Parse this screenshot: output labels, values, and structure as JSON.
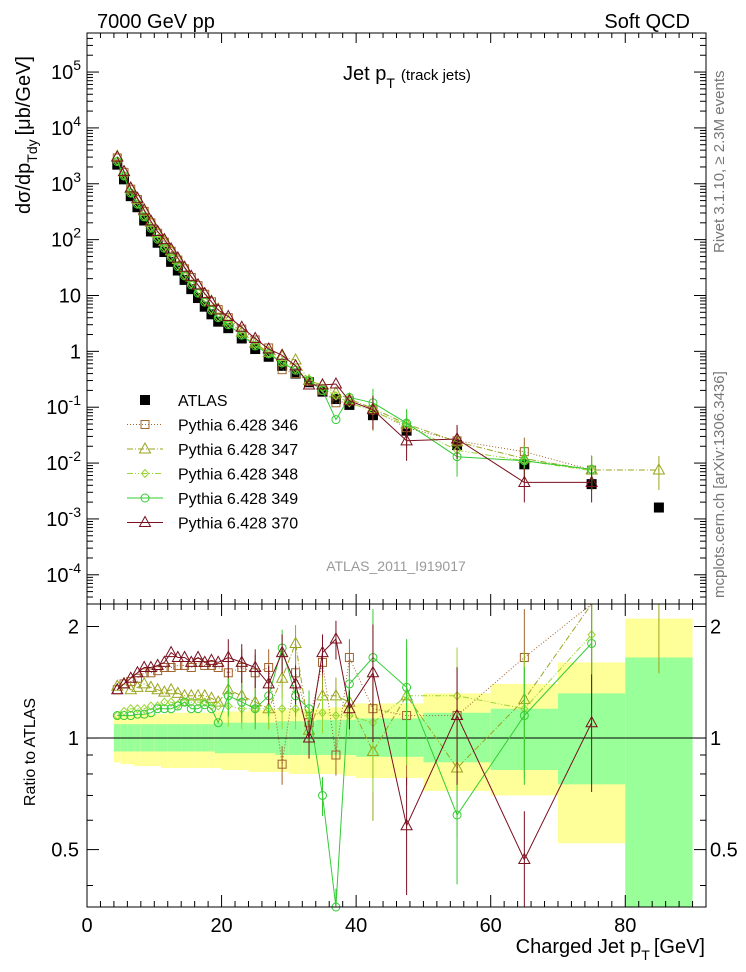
{
  "header": {
    "left": "7000 GeV pp",
    "right": "Soft QCD",
    "side_top": "Rivet 3.1.10, ≥ 2.3M events",
    "side_bottom": "mcplots.cern.ch [arXiv:1306.3436]",
    "watermark": "ATLAS_2011_I919017"
  },
  "colors": {
    "atlas": "#000000",
    "s346": "#a0642d",
    "s347": "#9aa51e",
    "s348": "#99d633",
    "s349": "#33cc33",
    "s370": "#7a0f1f",
    "band_outer": "#ffff99",
    "band_inner": "#99ff99"
  },
  "chart_data": [
    {
      "type": "scatter",
      "title": "Jet p_T (track jets)",
      "title_main": "Jet p",
      "title_sub": "T",
      "title_note": "(track jets)",
      "ylabel": "dσ/dp_Tdy [μb/GeV]",
      "ylabel_main": "dσ/dp",
      "ylabel_sub": "Tdy",
      "ylabel_unit": "[μb/GeV]",
      "yscale": "log",
      "ylim": [
        3e-05,
        500000
      ],
      "xlim": [
        0,
        92
      ],
      "ytick_labels": [
        "10^-4",
        "10^-3",
        "10^-2",
        "10^-1",
        "1",
        "10",
        "10^2",
        "10^3",
        "10^4",
        "10^5"
      ],
      "legend_placement": "bottom-left",
      "series": [
        {
          "name": "ATLAS",
          "x": [
            4.5,
            5.5,
            6.5,
            7.5,
            8.5,
            9.5,
            10.5,
            11.5,
            12.5,
            13.5,
            14.5,
            15.5,
            16.5,
            17.5,
            18.5,
            19.5,
            21,
            23,
            25,
            27,
            29,
            31,
            33,
            35,
            37,
            39,
            42.5,
            47.5,
            55,
            65,
            75,
            85
          ],
          "y": [
            2200,
            1200,
            600,
            380,
            220,
            140,
            88,
            60,
            40,
            28,
            19,
            13,
            9,
            6.3,
            4.6,
            3.4,
            2.6,
            1.7,
            1.1,
            0.8,
            0.55,
            0.4,
            0.28,
            0.19,
            0.14,
            0.11,
            0.072,
            0.038,
            0.021,
            0.0095,
            0.0042,
            0.0016
          ]
        },
        {
          "name": "Pythia 6.428 346",
          "x": [
            4.5,
            5.5,
            6.5,
            7.5,
            8.5,
            9.5,
            10.5,
            11.5,
            12.5,
            13.5,
            14.5,
            15.5,
            16.5,
            17.5,
            18.5,
            19.5,
            21,
            23,
            25,
            27,
            29,
            31,
            33,
            35,
            37,
            39,
            42.5,
            47.5,
            55,
            65,
            75
          ],
          "y": [
            2900,
            1600,
            800,
            520,
            320,
            200,
            130,
            90,
            62,
            43,
            30,
            21,
            15,
            10.5,
            7.7,
            5.6,
            4.0,
            2.5,
            1.6,
            1.15,
            0.47,
            0.4,
            0.29,
            0.2,
            0.12,
            0.13,
            0.09,
            0.043,
            0.025,
            0.016,
            0.0075
          ]
        },
        {
          "name": "Pythia 6.428 347",
          "x": [
            4.5,
            5.5,
            6.5,
            7.5,
            8.5,
            9.5,
            10.5,
            11.5,
            12.5,
            13.5,
            14.5,
            15.5,
            16.5,
            17.5,
            18.5,
            19.5,
            21,
            23,
            25,
            27,
            29,
            31,
            33,
            35,
            37,
            39,
            42.5,
            47.5,
            55,
            65,
            75,
            85
          ],
          "y": [
            3100,
            1650,
            820,
            530,
            325,
            205,
            132,
            92,
            63,
            44,
            31,
            21.5,
            15.5,
            10.8,
            7.9,
            5.7,
            3.5,
            2.2,
            1.4,
            0.95,
            0.8,
            0.7,
            0.3,
            0.25,
            0.18,
            0.14,
            0.095,
            0.05,
            0.024,
            0.012,
            0.0075,
            0.0075
          ]
        },
        {
          "name": "Pythia 6.428 348",
          "x": [
            4.5,
            5.5,
            6.5,
            7.5,
            8.5,
            9.5,
            10.5,
            11.5,
            12.5,
            13.5,
            14.5,
            15.5,
            16.5,
            17.5,
            18.5,
            19.5,
            21,
            23,
            25,
            27,
            29,
            31,
            33,
            35,
            37,
            39,
            42.5,
            47.5,
            55,
            65,
            75
          ],
          "y": [
            2550,
            1400,
            690,
            440,
            260,
            165,
            105,
            72,
            49,
            34,
            23,
            16,
            11.3,
            7.9,
            5.6,
            4.1,
            3.1,
            2.0,
            1.3,
            0.93,
            0.65,
            0.48,
            0.32,
            0.22,
            0.16,
            0.12,
            0.085,
            0.047,
            0.017,
            0.011,
            0.0073
          ]
        },
        {
          "name": "Pythia 6.428 349",
          "x": [
            4.5,
            5.5,
            6.5,
            7.5,
            8.5,
            9.5,
            10.5,
            11.5,
            12.5,
            13.5,
            14.5,
            15.5,
            16.5,
            17.5,
            18.5,
            19.5,
            21,
            23,
            25,
            27,
            29,
            31,
            33,
            35,
            37,
            39,
            42.5,
            47.5,
            55,
            65,
            75
          ],
          "y": [
            2500,
            1380,
            680,
            430,
            255,
            160,
            102,
            70,
            48,
            33,
            22.5,
            15.5,
            11,
            7.6,
            5.4,
            4.0,
            3.0,
            1.95,
            1.25,
            0.9,
            0.62,
            0.46,
            0.3,
            0.2,
            0.06,
            0.15,
            0.12,
            0.052,
            0.013,
            0.011,
            0.0077
          ]
        },
        {
          "name": "Pythia 6.428 370",
          "x": [
            4.5,
            5.5,
            6.5,
            7.5,
            8.5,
            9.5,
            10.5,
            11.5,
            12.5,
            13.5,
            14.5,
            15.5,
            16.5,
            17.5,
            18.5,
            19.5,
            21,
            23,
            25,
            27,
            29,
            31,
            33,
            35,
            37,
            39,
            42.5,
            47.5,
            55,
            65,
            75
          ],
          "y": [
            3000,
            1650,
            840,
            550,
            340,
            215,
            140,
            100,
            68,
            47,
            32,
            22,
            15.5,
            10.8,
            7.7,
            5.5,
            4.2,
            2.7,
            1.7,
            1.1,
            0.85,
            0.55,
            0.25,
            0.25,
            0.26,
            0.13,
            0.09,
            0.025,
            0.027,
            0.0045,
            0.0045
          ]
        }
      ]
    },
    {
      "type": "line",
      "ylabel": "Ratio to ATLAS",
      "xlabel": "Charged Jet p_T [GeV]",
      "xlabel_main": "Charged Jet p",
      "xlabel_sub": "T",
      "xlabel_unit": "[GeV]",
      "xlim": [
        0,
        92
      ],
      "ylim": [
        0.35,
        2.3
      ],
      "yscale": "log",
      "xtick_labels": [
        "0",
        "20",
        "40",
        "60",
        "80"
      ],
      "ytick_labels": [
        "0.5",
        "1",
        "2"
      ],
      "uncertainty_bands": {
        "edges": [
          4,
          5,
          6,
          7,
          8,
          9,
          10,
          11,
          12,
          13,
          14,
          15,
          16,
          17,
          18,
          19,
          20,
          22,
          24,
          26,
          28,
          30,
          32,
          34,
          36,
          38,
          40,
          45,
          50,
          60,
          70,
          80,
          90
        ],
        "outer_lo": [
          0.86,
          0.85,
          0.85,
          0.84,
          0.84,
          0.84,
          0.84,
          0.83,
          0.83,
          0.83,
          0.83,
          0.83,
          0.83,
          0.83,
          0.83,
          0.83,
          0.82,
          0.82,
          0.81,
          0.81,
          0.81,
          0.8,
          0.8,
          0.8,
          0.8,
          0.79,
          0.78,
          0.78,
          0.72,
          0.7,
          0.52,
          0.35
        ],
        "outer_hi": [
          1.15,
          1.15,
          1.15,
          1.16,
          1.16,
          1.16,
          1.16,
          1.16,
          1.17,
          1.17,
          1.17,
          1.17,
          1.17,
          1.17,
          1.17,
          1.18,
          1.18,
          1.18,
          1.19,
          1.19,
          1.19,
          1.2,
          1.2,
          1.2,
          1.21,
          1.22,
          1.24,
          1.24,
          1.32,
          1.4,
          1.6,
          2.1
        ],
        "inner_lo": [
          0.92,
          0.92,
          0.92,
          0.92,
          0.92,
          0.92,
          0.92,
          0.92,
          0.92,
          0.92,
          0.92,
          0.92,
          0.92,
          0.92,
          0.92,
          0.91,
          0.91,
          0.91,
          0.91,
          0.91,
          0.9,
          0.9,
          0.9,
          0.9,
          0.9,
          0.9,
          0.89,
          0.89,
          0.86,
          0.82,
          0.75,
          0.35
        ],
        "inner_hi": [
          1.09,
          1.09,
          1.09,
          1.09,
          1.09,
          1.09,
          1.09,
          1.09,
          1.09,
          1.09,
          1.09,
          1.09,
          1.09,
          1.09,
          1.09,
          1.1,
          1.1,
          1.1,
          1.1,
          1.1,
          1.11,
          1.11,
          1.11,
          1.12,
          1.12,
          1.12,
          1.13,
          1.13,
          1.17,
          1.2,
          1.32,
          1.65
        ]
      },
      "series": [
        {
          "name": "Pythia 6.428 346",
          "x": [
            4.5,
            5.5,
            6.5,
            7.5,
            8.5,
            9.5,
            10.5,
            11.5,
            12.5,
            13.5,
            14.5,
            15.5,
            16.5,
            17.5,
            18.5,
            19.5,
            21,
            23,
            25,
            27,
            29,
            31,
            33,
            35,
            37,
            39,
            42.5,
            47.5,
            55,
            65,
            75
          ],
          "y": [
            1.35,
            1.4,
            1.42,
            1.45,
            1.5,
            1.5,
            1.52,
            1.55,
            1.55,
            1.57,
            1.57,
            1.55,
            1.6,
            1.57,
            1.57,
            1.55,
            1.5,
            1.55,
            1.5,
            1.55,
            0.85,
            1.5,
            1.1,
            1.6,
            0.9,
            1.65,
            1.2,
            1.15,
            1.15,
            1.65,
            2.3
          ]
        },
        {
          "name": "Pythia 6.428 347",
          "x": [
            4.5,
            5.5,
            6.5,
            7.5,
            8.5,
            9.5,
            10.5,
            11.5,
            12.5,
            13.5,
            14.5,
            15.5,
            16.5,
            17.5,
            18.5,
            19.5,
            21,
            23,
            25,
            27,
            29,
            31,
            33,
            35,
            37,
            39,
            42.5,
            47.5,
            55,
            65,
            75,
            85
          ],
          "y": [
            1.38,
            1.4,
            1.35,
            1.37,
            1.4,
            1.37,
            1.35,
            1.33,
            1.35,
            1.32,
            1.3,
            1.3,
            1.3,
            1.3,
            1.28,
            1.25,
            1.35,
            1.3,
            1.25,
            1.2,
            1.45,
            1.8,
            1.05,
            1.3,
            1.3,
            1.25,
            0.92,
            1.3,
            0.83,
            1.27,
            2.3,
            2.3
          ]
        },
        {
          "name": "Pythia 6.428 348",
          "x": [
            4.5,
            5.5,
            6.5,
            7.5,
            8.5,
            9.5,
            10.5,
            11.5,
            12.5,
            13.5,
            14.5,
            15.5,
            16.5,
            17.5,
            18.5,
            19.5,
            21,
            23,
            25,
            27,
            29,
            31,
            33,
            35,
            37,
            39,
            42.5,
            47.5,
            55,
            65,
            75
          ],
          "y": [
            1.15,
            1.18,
            1.2,
            1.2,
            1.2,
            1.22,
            1.22,
            1.25,
            1.25,
            1.23,
            1.25,
            1.25,
            1.25,
            1.25,
            1.22,
            1.22,
            1.22,
            1.2,
            1.2,
            1.2,
            1.2,
            1.2,
            1.15,
            1.17,
            1.15,
            1.15,
            1.1,
            1.3,
            1.3,
            1.2,
            1.9
          ]
        },
        {
          "name": "Pythia 6.428 349",
          "x": [
            4.5,
            5.5,
            6.5,
            7.5,
            8.5,
            9.5,
            10.5,
            11.5,
            12.5,
            13.5,
            14.5,
            15.5,
            16.5,
            17.5,
            18.5,
            19.5,
            21,
            23,
            25,
            27,
            29,
            31,
            33,
            35,
            37,
            39,
            42.5,
            47.5,
            55,
            65,
            75
          ],
          "y": [
            1.15,
            1.15,
            1.15,
            1.16,
            1.16,
            1.17,
            1.2,
            1.2,
            1.2,
            1.22,
            1.25,
            1.2,
            1.2,
            1.23,
            1.2,
            1.1,
            1.3,
            1.25,
            1.2,
            1.3,
            1.75,
            1.3,
            1.2,
            0.7,
            0.35,
            1.4,
            1.65,
            1.37,
            0.62,
            1.15,
            1.8
          ]
        },
        {
          "name": "Pythia 6.428 370",
          "x": [
            4.5,
            5.5,
            6.5,
            7.5,
            8.5,
            9.5,
            10.5,
            11.5,
            12.5,
            13.5,
            14.5,
            15.5,
            16.5,
            17.5,
            18.5,
            19.5,
            21,
            23,
            25,
            27,
            29,
            31,
            33,
            35,
            37,
            39,
            42.5,
            47.5,
            55,
            65,
            75
          ],
          "y": [
            1.35,
            1.4,
            1.45,
            1.5,
            1.55,
            1.55,
            1.57,
            1.6,
            1.7,
            1.65,
            1.65,
            1.6,
            1.65,
            1.6,
            1.62,
            1.6,
            1.65,
            1.6,
            1.55,
            1.4,
            1.7,
            1.4,
            1.0,
            1.7,
            1.85,
            1.2,
            1.5,
            0.58,
            1.15,
            0.47,
            1.1
          ]
        }
      ]
    }
  ]
}
